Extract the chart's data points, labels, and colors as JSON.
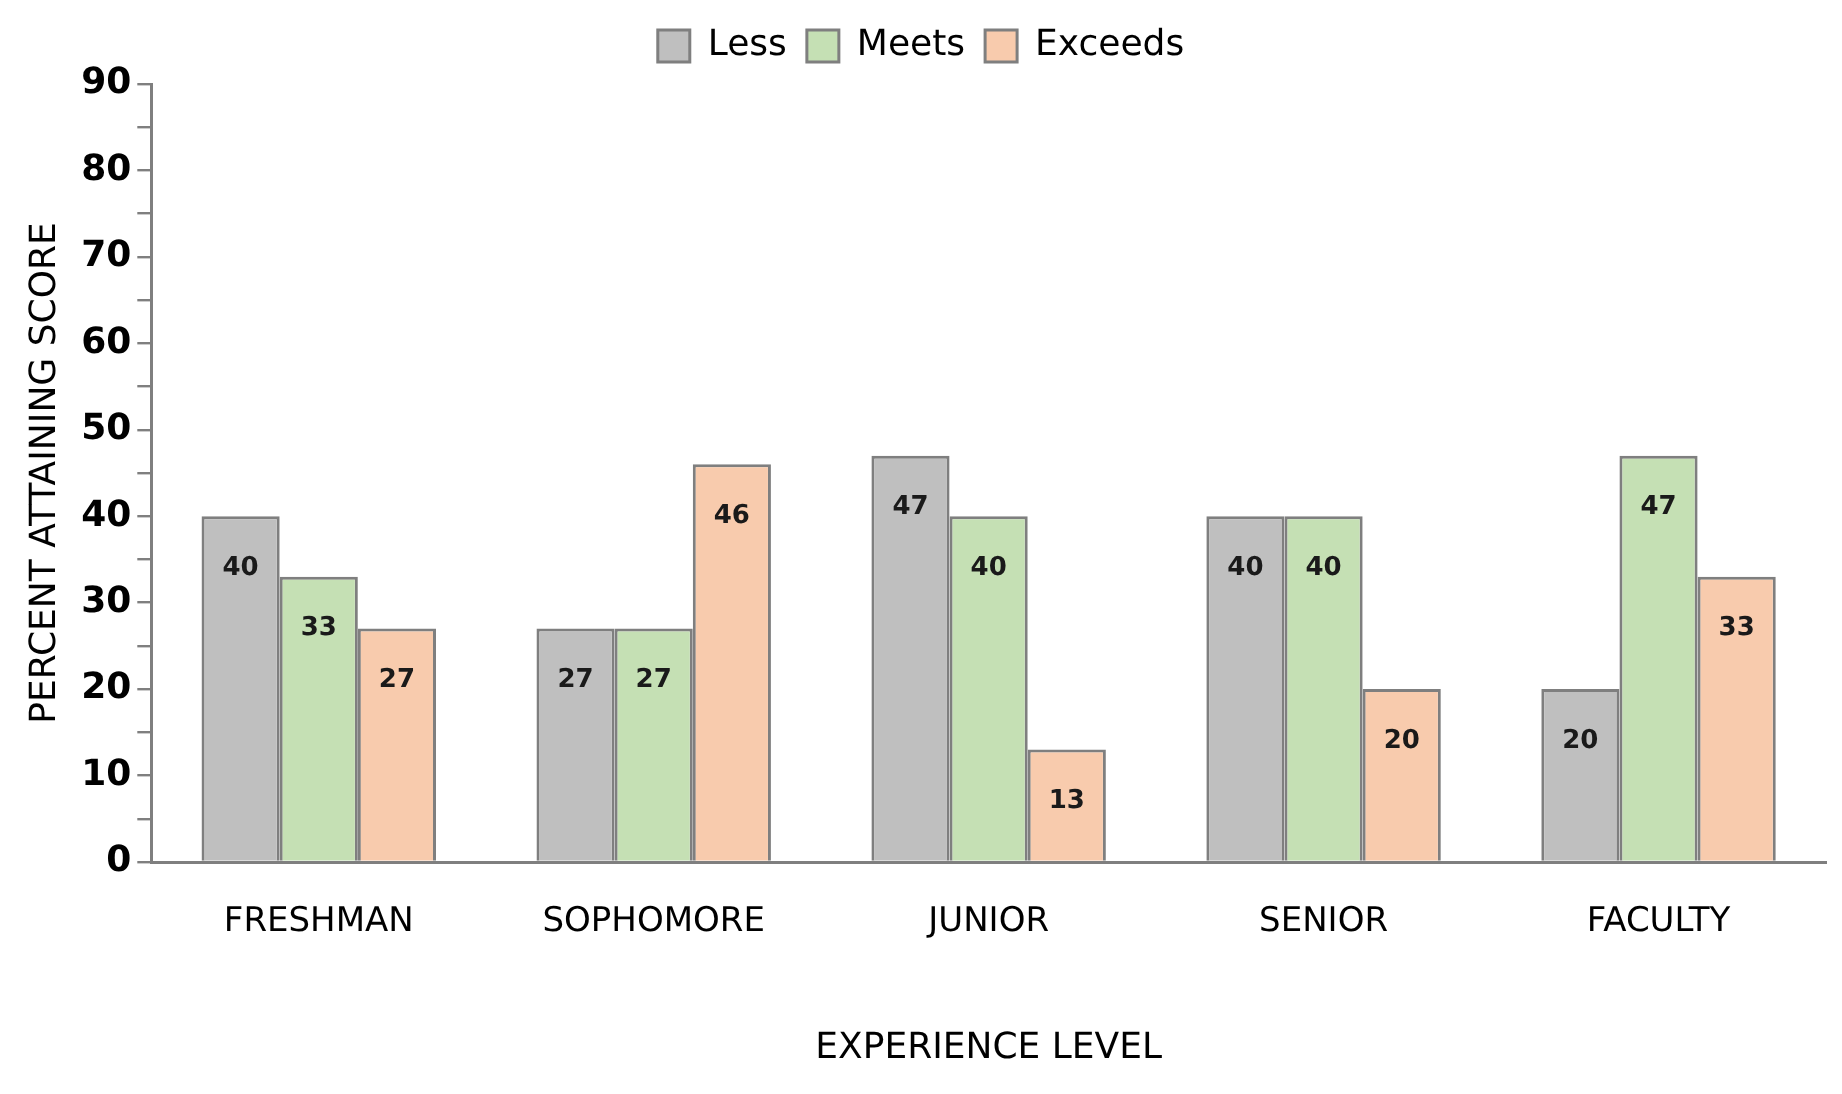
{
  "chart_data": {
    "type": "bar",
    "xlabel": "EXPERIENCE LEVEL",
    "ylabel": "PERCENT ATTAINING SCORE",
    "categories": [
      "FRESHMAN",
      "SOPHOMORE",
      "JUNIOR",
      "SENIOR",
      "FACULTY"
    ],
    "series": [
      {
        "name": "Less",
        "color": "#bfbfbf",
        "values": [
          40,
          27,
          47,
          40,
          20
        ]
      },
      {
        "name": "Meets",
        "color": "#c5e0b4",
        "values": [
          33,
          27,
          40,
          40,
          47
        ]
      },
      {
        "name": "Exceeds",
        "color": "#f8cbad",
        "values": [
          27,
          46,
          13,
          20,
          33
        ]
      }
    ],
    "ylim": [
      0,
      90
    ],
    "yticks": [
      0,
      {
        "value": 5,
        "label": null
      },
      10,
      {
        "value": 15,
        "label": null
      },
      20,
      {
        "value": 25,
        "label": null
      },
      30,
      {
        "value": 35,
        "label": null
      },
      40,
      {
        "value": 45,
        "label": null
      },
      50,
      {
        "value": 55,
        "label": null
      },
      60,
      {
        "value": 65,
        "label": null
      },
      70,
      {
        "value": 75,
        "label": null
      },
      80,
      {
        "value": 85,
        "label": null
      },
      90
    ],
    "data_labels": true,
    "legend": "top",
    "grid": false
  }
}
